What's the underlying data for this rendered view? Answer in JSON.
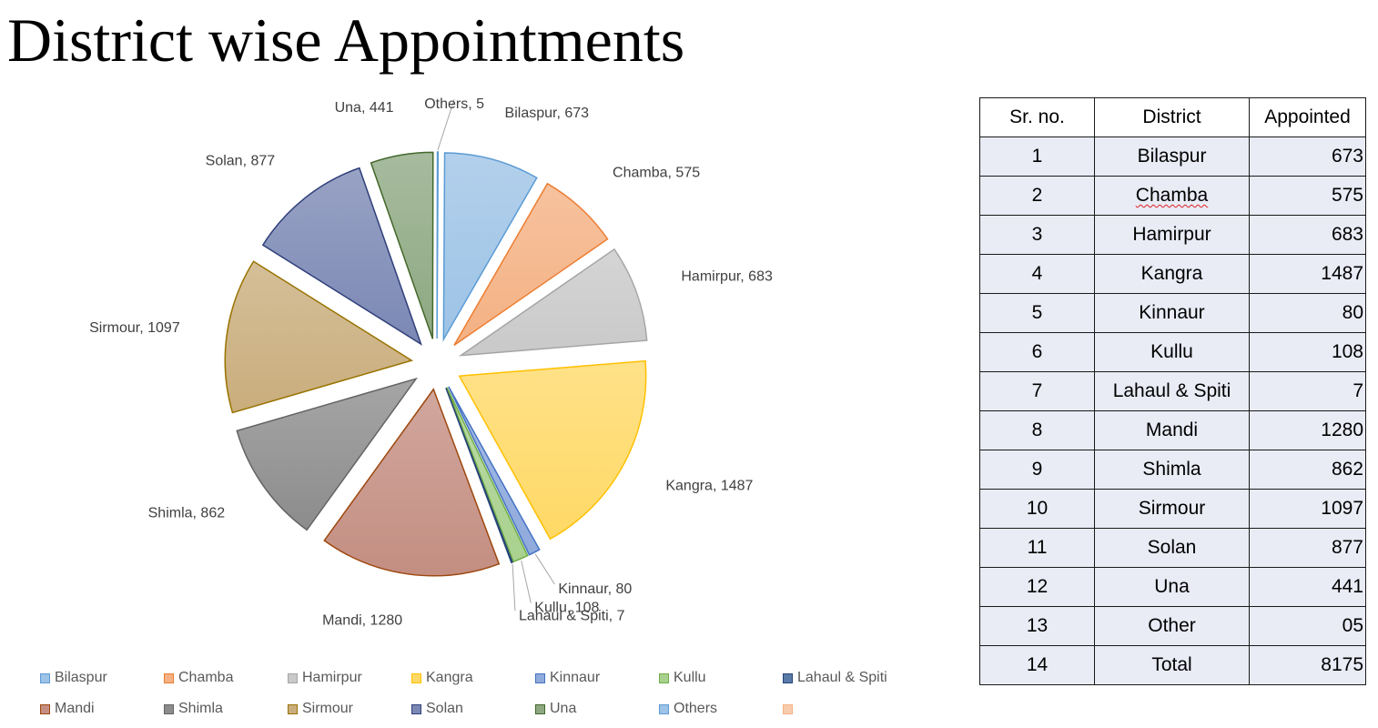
{
  "title": "District wise Appointments",
  "chart_data": {
    "type": "pie",
    "title": "",
    "exploded": true,
    "slices": [
      {
        "label": "Bilaspur",
        "value": 673,
        "color": "#9dc3e6",
        "stroke": "#5b9bd5"
      },
      {
        "label": "Chamba",
        "value": 575,
        "color": "#f4b183",
        "stroke": "#ed7d31"
      },
      {
        "label": "Hamirpur",
        "value": 683,
        "color": "#c9c9c9",
        "stroke": "#a5a5a5"
      },
      {
        "label": "Kangra",
        "value": 1487,
        "color": "#ffd966",
        "stroke": "#ffc000"
      },
      {
        "label": "Kinnaur",
        "value": 80,
        "color": "#8faadc",
        "stroke": "#4472c4"
      },
      {
        "label": "Kullu",
        "value": 108,
        "color": "#a9d18e",
        "stroke": "#70ad47"
      },
      {
        "label": "Lahaul & Spiti",
        "value": 7,
        "color": "#5a7aa8",
        "stroke": "#264478"
      },
      {
        "label": "Mandi",
        "value": 1280,
        "color": "#c48e82",
        "stroke": "#9e480e"
      },
      {
        "label": "Shimla",
        "value": 862,
        "color": "#8c8c8c",
        "stroke": "#636363"
      },
      {
        "label": "Sirmour",
        "value": 1097,
        "color": "#c9ad7c",
        "stroke": "#997300"
      },
      {
        "label": "Solan",
        "value": 877,
        "color": "#7b88b4",
        "stroke": "#2f3f7a"
      },
      {
        "label": "Una",
        "value": 441,
        "color": "#8ea882",
        "stroke": "#43682b"
      },
      {
        "label": "Others",
        "value": 5,
        "color": "#9dc3e6",
        "stroke": "#5b9bd5"
      }
    ],
    "data_labels": [
      "Bilaspur, 673",
      "Chamba, 575",
      "Hamirpur, 683",
      "Kangra, 1487",
      "Kinnaur, 80",
      "Kullu, 108",
      "Lahaul & Spiti, 7",
      "Mandi, 1280",
      "Shimla, 862",
      "Sirmour, 1097",
      "Solan, 877",
      "Una, 441",
      "Others, 5"
    ],
    "legend_position": "bottom",
    "legend": {
      "rows": [
        [
          {
            "label": "Bilaspur",
            "color": "#9dc3e6",
            "stroke": "#5b9bd5"
          },
          {
            "label": "Chamba",
            "color": "#f4b183",
            "stroke": "#ed7d31"
          },
          {
            "label": "Hamirpur",
            "color": "#c9c9c9",
            "stroke": "#a5a5a5"
          },
          {
            "label": "Kangra",
            "color": "#ffd966",
            "stroke": "#ffc000"
          },
          {
            "label": "Kinnaur",
            "color": "#8faadc",
            "stroke": "#4472c4"
          },
          {
            "label": "Kullu",
            "color": "#a9d18e",
            "stroke": "#70ad47"
          },
          {
            "label": "Lahaul & Spiti",
            "color": "#5a7aa8",
            "stroke": "#264478"
          }
        ],
        [
          {
            "label": "Mandi",
            "color": "#c48e82",
            "stroke": "#9e480e"
          },
          {
            "label": "Shimla",
            "color": "#8c8c8c",
            "stroke": "#636363"
          },
          {
            "label": "Sirmour",
            "color": "#c9ad7c",
            "stroke": "#997300"
          },
          {
            "label": "Solan",
            "color": "#7b88b4",
            "stroke": "#2f3f7a"
          },
          {
            "label": "Una",
            "color": "#8ea882",
            "stroke": "#43682b"
          },
          {
            "label": "Others",
            "color": "#9dc3e6",
            "stroke": "#5b9bd5"
          },
          {
            "label": "",
            "color": "#f8cbad",
            "stroke": "#f4b183"
          }
        ]
      ]
    }
  },
  "table": {
    "headers": [
      "Sr. no.",
      "District",
      "Appointed"
    ],
    "rows": [
      {
        "sr": "1",
        "district": "Bilaspur",
        "appointed": "673"
      },
      {
        "sr": "2",
        "district": "Chamba",
        "appointed": "575",
        "spell": true
      },
      {
        "sr": "3",
        "district": "Hamirpur",
        "appointed": "683"
      },
      {
        "sr": "4",
        "district": "Kangra",
        "appointed": "1487"
      },
      {
        "sr": "5",
        "district": "Kinnaur",
        "appointed": "80"
      },
      {
        "sr": "6",
        "district": "Kullu",
        "appointed": "108"
      },
      {
        "sr": "7",
        "district": "Lahaul & Spiti",
        "appointed": "7"
      },
      {
        "sr": "8",
        "district": "Mandi",
        "appointed": "1280"
      },
      {
        "sr": "9",
        "district": "Shimla",
        "appointed": "862"
      },
      {
        "sr": "10",
        "district": "Sirmour",
        "appointed": "1097"
      },
      {
        "sr": "11",
        "district": "Solan",
        "appointed": "877"
      },
      {
        "sr": "12",
        "district": "Una",
        "appointed": "441"
      },
      {
        "sr": "13",
        "district": "Other",
        "appointed": "05"
      },
      {
        "sr": "14",
        "district": "Total",
        "appointed": "8175"
      }
    ]
  }
}
